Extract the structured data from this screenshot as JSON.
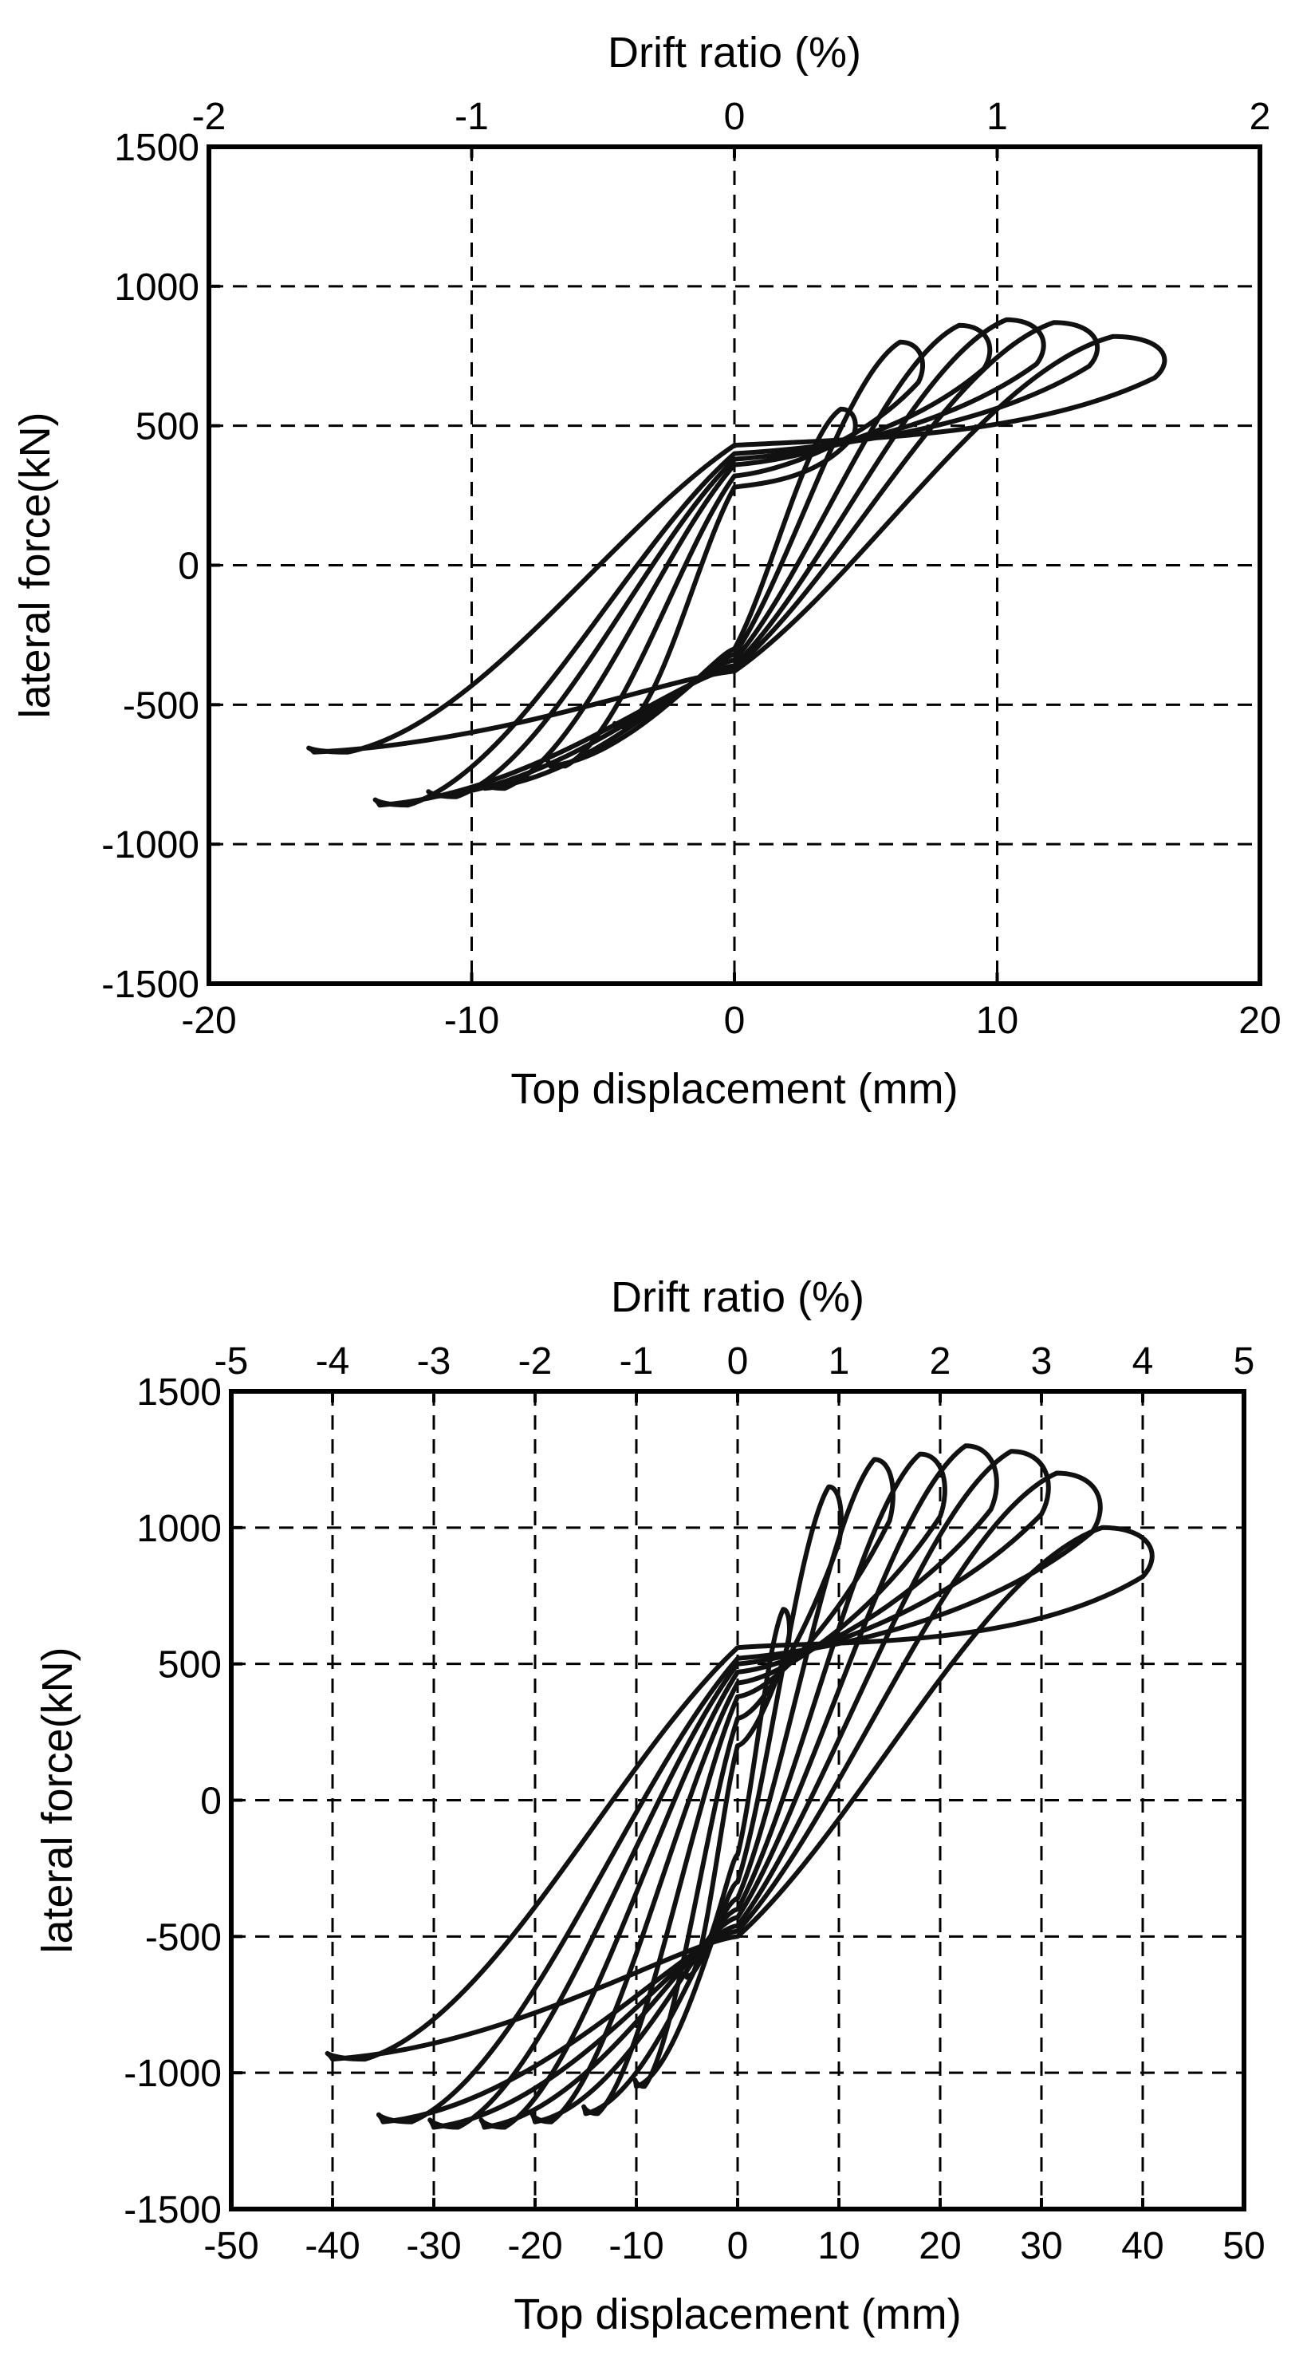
{
  "chart_data": [
    {
      "type": "line",
      "title": "",
      "xlabel": "Top displacement (mm)",
      "ylabel": "lateral force(kN)",
      "x2label": "Drift ratio (%)",
      "xlim": [
        -20,
        20
      ],
      "ylim": [
        -1500,
        1500
      ],
      "x2lim": [
        -2,
        2
      ],
      "xticks": [
        -20,
        -10,
        0,
        10,
        20
      ],
      "yticks": [
        -1500,
        -1000,
        -500,
        0,
        500,
        1000,
        1500
      ],
      "x2ticks": [
        -2,
        -1,
        0,
        1,
        2
      ],
      "xtick_labels": [
        "-20",
        "-10",
        "0",
        "10",
        "20"
      ],
      "ytick_labels": [
        "-1500",
        "-1000",
        "-500",
        "0",
        "500",
        "1000",
        "1500"
      ],
      "x2tick_labels": [
        "-2",
        "-1",
        "0",
        "1",
        "2"
      ],
      "grid": true,
      "line_color": "#111111",
      "loops": [
        {
          "peak_pos": [
            4.5,
            560
          ],
          "peak_neg": [
            -4.5,
            -580
          ],
          "zero_pos": 280,
          "zero_neg": -300
        },
        {
          "peak_pos": [
            7,
            800
          ],
          "peak_neg": [
            -7,
            -720
          ],
          "zero_pos": 320,
          "zero_neg": -320
        },
        {
          "peak_pos": [
            9.5,
            860
          ],
          "peak_neg": [
            -9.5,
            -800
          ],
          "zero_pos": 360,
          "zero_neg": -340
        },
        {
          "peak_pos": [
            11.5,
            880
          ],
          "peak_neg": [
            -11.5,
            -830
          ],
          "zero_pos": 380,
          "zero_neg": -360
        },
        {
          "peak_pos": [
            13.5,
            870
          ],
          "peak_neg": [
            -13.5,
            -860
          ],
          "zero_pos": 400,
          "zero_neg": -370
        },
        {
          "peak_pos": [
            16,
            820
          ],
          "peak_neg": [
            -16,
            -670
          ],
          "zero_pos": 430,
          "zero_neg": -380
        }
      ]
    },
    {
      "type": "line",
      "title": "",
      "xlabel": "Top displacement (mm)",
      "ylabel": "lateral force(kN)",
      "x2label": "Drift ratio (%)",
      "xlim": [
        -50,
        50
      ],
      "ylim": [
        -1500,
        1500
      ],
      "x2lim": [
        -5,
        5
      ],
      "xticks": [
        -50,
        -40,
        -30,
        -20,
        -10,
        0,
        10,
        20,
        30,
        40,
        50
      ],
      "yticks": [
        -1500,
        -1000,
        -500,
        0,
        500,
        1000,
        1500
      ],
      "x2ticks": [
        -5,
        -4,
        -3,
        -2,
        -1,
        0,
        1,
        2,
        3,
        4,
        5
      ],
      "xtick_labels": [
        "-50",
        "-40",
        "-30",
        "-20",
        "-10",
        "0",
        "10",
        "20",
        "30",
        "40",
        "50"
      ],
      "ytick_labels": [
        "-1500",
        "-1000",
        "-500",
        "0",
        "500",
        "1000",
        "1500"
      ],
      "x2tick_labels": [
        "-5",
        "-4",
        "-3",
        "-2",
        "-1",
        "0",
        "1",
        "2",
        "3",
        "4",
        "5"
      ],
      "grid": true,
      "line_color": "#111111",
      "loops": [
        {
          "peak_pos": [
            5,
            700
          ],
          "peak_neg": [
            -5,
            -650
          ],
          "zero_pos": 200,
          "zero_neg": -200
        },
        {
          "peak_pos": [
            10,
            1150
          ],
          "peak_neg": [
            -10,
            -1050
          ],
          "zero_pos": 300,
          "zero_neg": -300
        },
        {
          "peak_pos": [
            15,
            1250
          ],
          "peak_neg": [
            -15,
            -1150
          ],
          "zero_pos": 380,
          "zero_neg": -360
        },
        {
          "peak_pos": [
            20,
            1270
          ],
          "peak_neg": [
            -20,
            -1180
          ],
          "zero_pos": 430,
          "zero_neg": -400
        },
        {
          "peak_pos": [
            25,
            1300
          ],
          "peak_neg": [
            -25,
            -1200
          ],
          "zero_pos": 470,
          "zero_neg": -430
        },
        {
          "peak_pos": [
            30,
            1280
          ],
          "peak_neg": [
            -30,
            -1200
          ],
          "zero_pos": 500,
          "zero_neg": -460
        },
        {
          "peak_pos": [
            35,
            1200
          ],
          "peak_neg": [
            -35,
            -1180
          ],
          "zero_pos": 520,
          "zero_neg": -480
        },
        {
          "peak_pos": [
            40,
            1000
          ],
          "peak_neg": [
            -40,
            -950
          ],
          "zero_pos": 560,
          "zero_neg": -500
        }
      ]
    }
  ]
}
